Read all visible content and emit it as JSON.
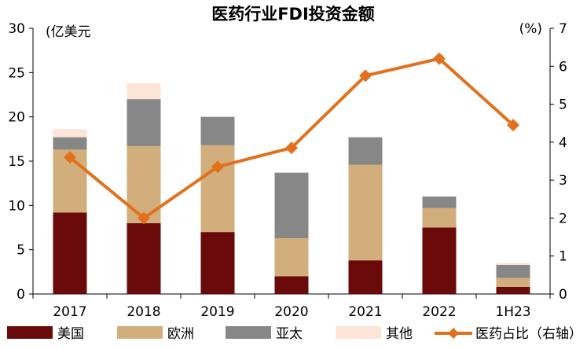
{
  "chart_data": {
    "type": "bar",
    "title": "医药行业FDI投资金额",
    "left_unit": "(亿美元",
    "right_unit": "(%)",
    "categories": [
      "2017",
      "2018",
      "2019",
      "2020",
      "2021",
      "2022",
      "1H23"
    ],
    "ylim": [
      0,
      30
    ],
    "yticks": [
      "0",
      "5",
      "10",
      "15",
      "20",
      "25",
      "30"
    ],
    "y2lim": [
      0,
      7
    ],
    "y2ticks": [
      "0",
      "1",
      "2",
      "3",
      "4",
      "5",
      "6",
      "7"
    ],
    "series": [
      {
        "name": "美国",
        "kind": "bar",
        "color": "#6B0A0A",
        "values": [
          9.2,
          8.0,
          7.0,
          2.0,
          3.8,
          7.5,
          0.8
        ]
      },
      {
        "name": "欧洲",
        "kind": "bar",
        "color": "#D2AE7D",
        "values": [
          7.1,
          8.7,
          9.8,
          4.3,
          10.8,
          2.2,
          1.0
        ]
      },
      {
        "name": "亚太",
        "kind": "bar",
        "color": "#878787",
        "values": [
          1.4,
          5.3,
          3.2,
          7.4,
          3.1,
          1.3,
          1.5
        ]
      },
      {
        "name": "其他",
        "kind": "bar",
        "color": "#FCE4D6",
        "values": [
          0.9,
          1.8,
          0.0,
          0.0,
          0.0,
          0.0,
          0.2
        ]
      },
      {
        "name": "医药占比（右轴）",
        "kind": "line",
        "axis": "right",
        "color": "#E2711D",
        "values": [
          3.6,
          2.0,
          3.35,
          3.85,
          5.75,
          6.2,
          4.45
        ]
      }
    ]
  }
}
